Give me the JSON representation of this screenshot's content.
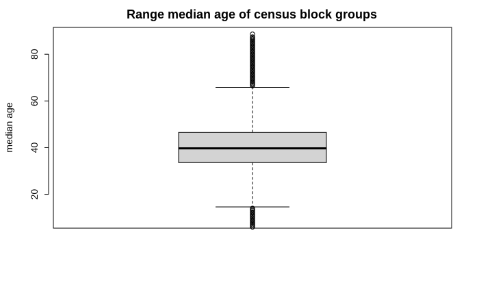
{
  "chart_data": {
    "type": "boxplot",
    "title": "Range median age of census block groups",
    "xlabel": "",
    "ylabel": "median age",
    "ylim": [
      5.5,
      91.5
    ],
    "yticks": [
      20,
      40,
      60,
      80
    ],
    "grid": false,
    "legend": "none",
    "box": {
      "whisker_low": 14.6,
      "q1": 33.6,
      "median": 39.7,
      "q3": 46.5,
      "whisker_high": 65.8,
      "box_color": "#d3d3d3",
      "outliers_low": [
        6.0,
        6.5,
        7.0,
        7.5,
        8.0,
        8.5,
        9.0,
        9.5,
        10.0,
        10.5,
        11.0,
        11.5,
        12.0,
        12.5,
        13.0,
        13.5,
        14.0
      ],
      "outliers_high": [
        66.5,
        67.0,
        67.5,
        68.0,
        68.5,
        69.0,
        69.5,
        70.0,
        70.5,
        71.0,
        71.5,
        72.0,
        72.5,
        73.0,
        73.5,
        74.0,
        74.5,
        75.0,
        75.5,
        76.0,
        76.5,
        77.0,
        77.5,
        78.0,
        78.5,
        79.0,
        79.5,
        80.0,
        80.5,
        81.0,
        81.5,
        82.0,
        82.5,
        83.0,
        83.5,
        84.0,
        84.5,
        85.0,
        85.5,
        86.0,
        86.5,
        87.0,
        87.4,
        88.6
      ]
    }
  }
}
